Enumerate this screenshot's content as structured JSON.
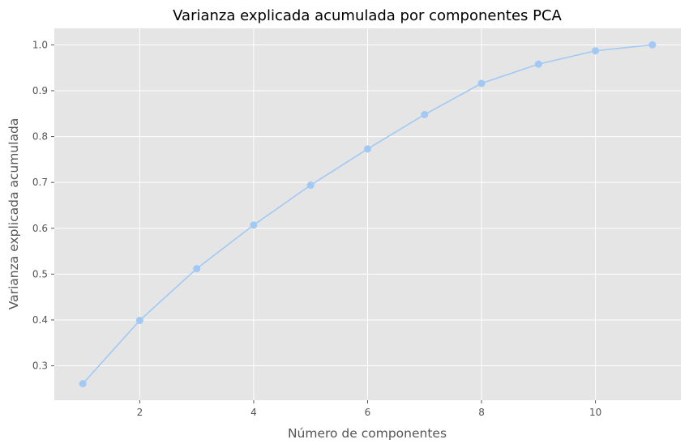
{
  "chart_data": {
    "type": "line",
    "title": "Varianza explicada acumulada por componentes PCA",
    "xlabel": "Número de componentes",
    "ylabel": "Varianza explicada acumulada",
    "x": [
      1,
      2,
      3,
      4,
      5,
      6,
      7,
      8,
      9,
      10,
      11
    ],
    "series": [
      {
        "values": [
          0.261,
          0.399,
          0.512,
          0.607,
          0.694,
          0.773,
          0.848,
          0.916,
          0.958,
          0.987,
          1.0
        ]
      }
    ],
    "xlim": [
      0.5,
      11.5
    ],
    "ylim": [
      0.225,
      1.036
    ],
    "xticks": [
      2,
      4,
      6,
      8,
      10
    ],
    "xtick_labels": [
      "2",
      "4",
      "6",
      "8",
      "10"
    ],
    "yticks": [
      0.3,
      0.4,
      0.5,
      0.6,
      0.7,
      0.8,
      0.9,
      1.0
    ],
    "ytick_labels": [
      "0.3",
      "0.4",
      "0.5",
      "0.6",
      "0.7",
      "0.8",
      "0.9",
      "1.0"
    ],
    "grid": true,
    "marker": "circle",
    "colors": {
      "line": "#a1c9f4",
      "plot_background": "#e5e5e5",
      "grid": "#ffffff",
      "tick_text": "#555555"
    }
  }
}
